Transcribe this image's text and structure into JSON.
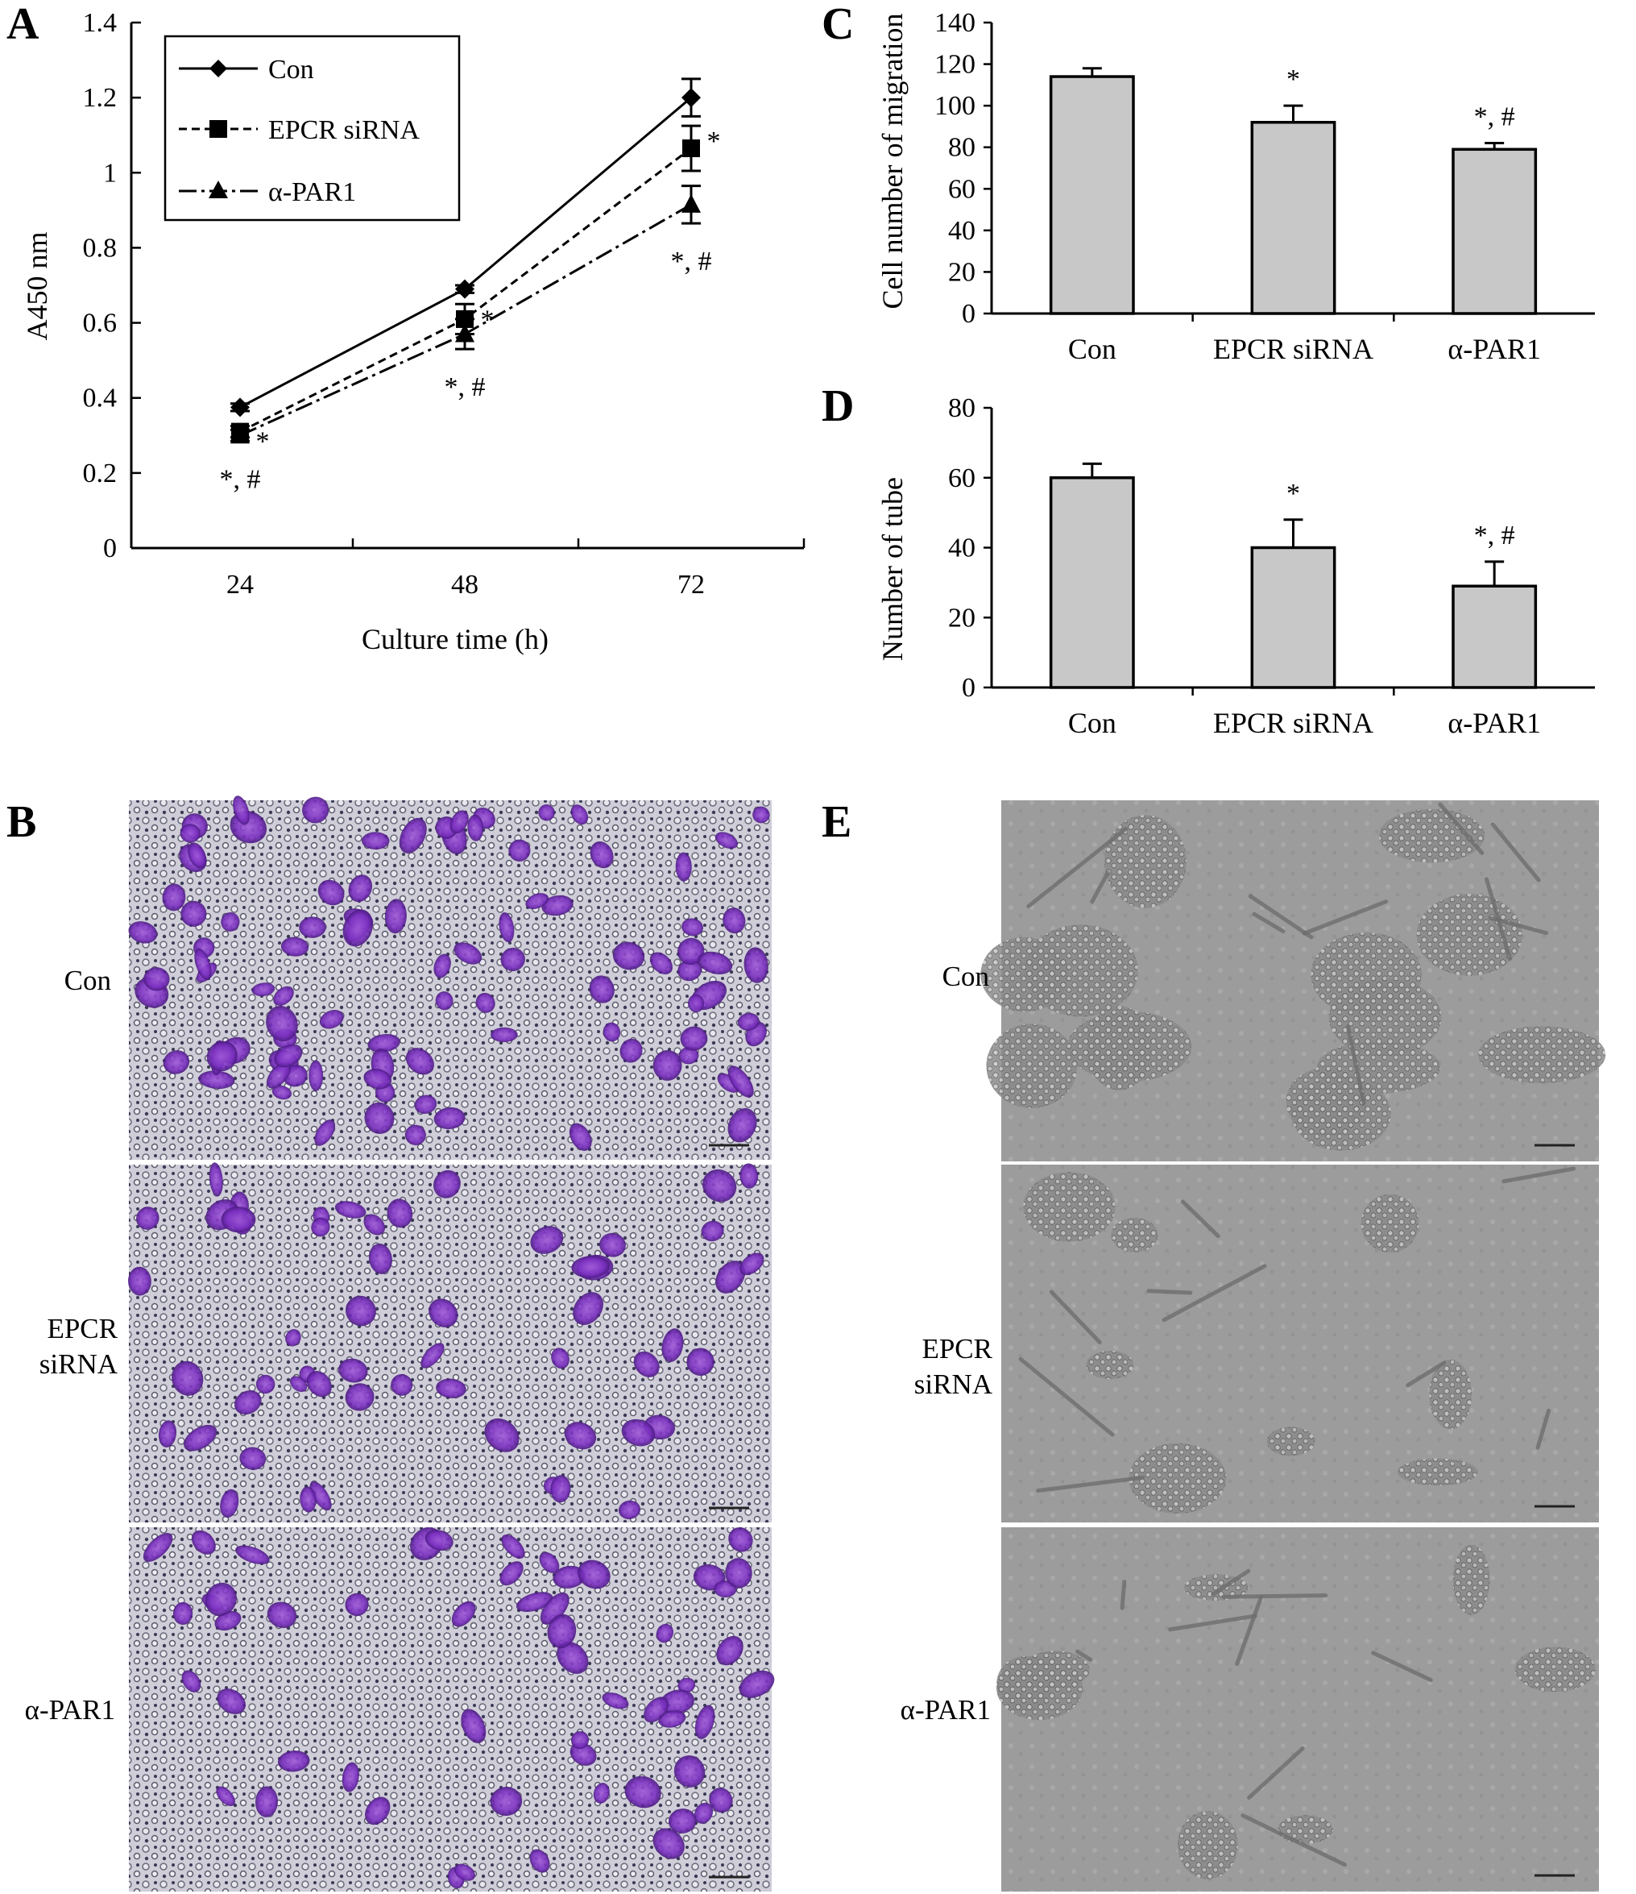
{
  "panels": {
    "A": "A",
    "B": "B",
    "C": "C",
    "D": "D",
    "E": "E"
  },
  "colors": {
    "bar_fill": "#c8c8c8",
    "stroke": "#000000"
  },
  "chart_data": [
    {
      "panel": "A",
      "type": "line",
      "xlabel": "Culture time (h)",
      "ylabel": "A450 nm",
      "x": [
        24,
        48,
        72
      ],
      "x_ticks": [
        "24",
        "48",
        "72"
      ],
      "ylim": [
        0,
        1.4
      ],
      "y_ticks": [
        "0",
        "0.2",
        "0.4",
        "0.6",
        "0.8",
        "1",
        "1.2",
        "1.4"
      ],
      "grid": false,
      "legend_position": "top-left",
      "series": [
        {
          "name": "Con",
          "marker": "diamond",
          "dash": "solid",
          "values": [
            0.375,
            0.69,
            1.2
          ],
          "errors": [
            0.01,
            0.01,
            0.05
          ]
        },
        {
          "name": "EPCR siRNA",
          "marker": "square",
          "dash": "dashed",
          "values": [
            0.31,
            0.61,
            1.065
          ],
          "errors": [
            0.015,
            0.04,
            0.06
          ]
        },
        {
          "name": "α-PAR1",
          "marker": "triangle",
          "dash": "dash-dot",
          "values": [
            0.3,
            0.57,
            0.915
          ],
          "errors": [
            0.015,
            0.04,
            0.05
          ]
        }
      ],
      "annotations": [
        {
          "text": "*",
          "x": 24,
          "series": "EPCR siRNA"
        },
        {
          "text": "*, #",
          "x": 24,
          "series": "α-PAR1"
        },
        {
          "text": "*",
          "x": 48,
          "series": "EPCR siRNA"
        },
        {
          "text": "*, #",
          "x": 48,
          "series": "α-PAR1"
        },
        {
          "text": "*",
          "x": 72,
          "series": "EPCR siRNA"
        },
        {
          "text": "*, #",
          "x": 72,
          "series": "α-PAR1"
        }
      ]
    },
    {
      "panel": "C",
      "type": "bar",
      "categories": [
        "Con",
        "EPCR siRNA",
        "α-PAR1"
      ],
      "values": [
        114,
        92,
        79
      ],
      "errors": [
        4,
        8,
        3
      ],
      "ylabel": "Cell number of migration",
      "xlabel": "",
      "ylim": [
        0,
        140
      ],
      "y_ticks": [
        "0",
        "20",
        "40",
        "60",
        "80",
        "100",
        "120",
        "140"
      ],
      "annotations": [
        "",
        "*",
        "*, #"
      ]
    },
    {
      "panel": "D",
      "type": "bar",
      "categories": [
        "Con",
        "EPCR siRNA",
        "α-PAR1"
      ],
      "values": [
        60,
        40,
        29
      ],
      "errors": [
        4,
        8,
        7
      ],
      "ylabel": "Number of tube",
      "xlabel": "",
      "ylim": [
        0,
        80
      ],
      "y_ticks": [
        "0",
        "20",
        "40",
        "60",
        "80"
      ],
      "annotations": [
        "",
        "*",
        "*, #"
      ]
    }
  ],
  "micrographs": {
    "B": {
      "description_labels": [
        {
          "line1": "Con",
          "line2": ""
        },
        {
          "line1": "EPCR",
          "line2": "siRNA"
        },
        {
          "line1": "α-PAR1",
          "line2": ""
        }
      ]
    },
    "E": {
      "description_labels": [
        {
          "line1": "Con",
          "line2": ""
        },
        {
          "line1": "EPCR",
          "line2": "siRNA"
        },
        {
          "line1": "α-PAR1",
          "line2": ""
        }
      ]
    }
  }
}
